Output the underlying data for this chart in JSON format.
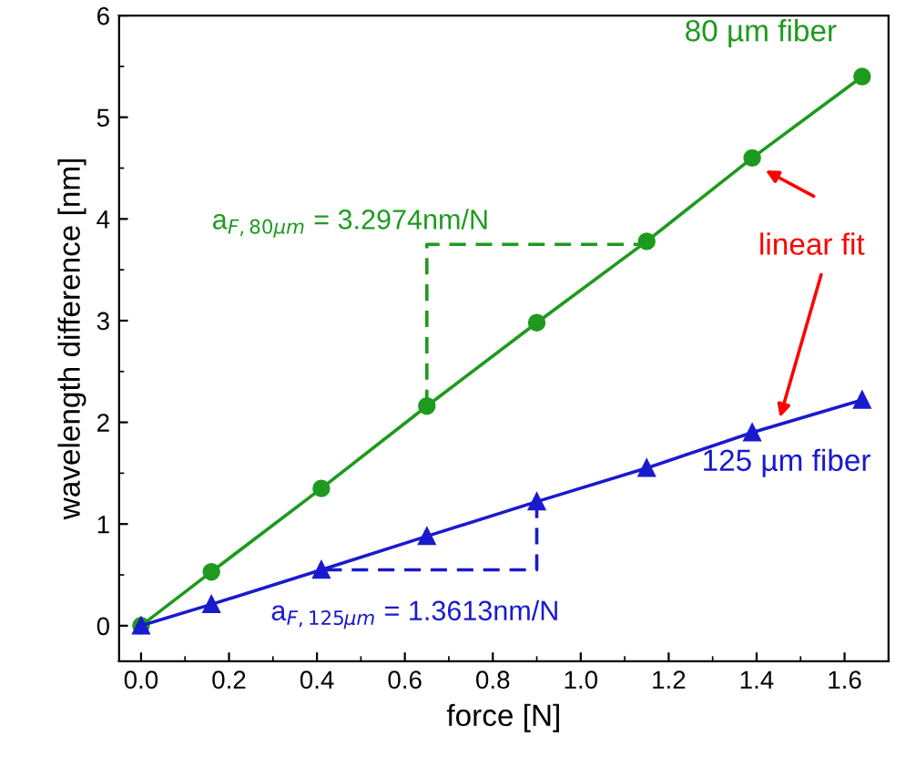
{
  "chart_data": {
    "type": "line",
    "xlabel": "force [N]",
    "ylabel": "wavelength difference [nm]",
    "xlim": [
      -0.05,
      1.7
    ],
    "ylim": [
      -0.35,
      6
    ],
    "xticks": [
      {
        "value": 0,
        "label": "0.0"
      },
      0.2,
      0.4,
      0.6,
      0.8,
      {
        "value": 1,
        "label": "1.0"
      },
      1.2,
      1.4,
      1.6
    ],
    "yticks": [
      0,
      1,
      2,
      3,
      4,
      5,
      6
    ],
    "grid": false,
    "legend": false,
    "series": [
      {
        "name": "80 µm fiber",
        "color": "#1e9a1e",
        "marker": "circle",
        "x": [
          0,
          0.16,
          0.41,
          0.65,
          0.9,
          1.15,
          1.39,
          1.64
        ],
        "values": [
          0,
          0.53,
          1.35,
          2.16,
          2.98,
          3.78,
          4.6,
          5.4
        ]
      },
      {
        "name": "125 µm fiber",
        "color": "#1a1acd",
        "marker": "triangle",
        "x": [
          0,
          0.16,
          0.41,
          0.65,
          0.9,
          1.15,
          1.39,
          1.64
        ],
        "values": [
          0,
          0.21,
          0.55,
          0.88,
          1.22,
          1.55,
          1.9,
          2.22
        ]
      },
      {
        "color": "#1e9a1e",
        "marker": "none",
        "line_style": "dashed",
        "x": [
          0.65,
          0.65,
          1.15
        ],
        "values": [
          2.16,
          3.75,
          3.75
        ]
      },
      {
        "color": "#1a1acd",
        "marker": "none",
        "line_style": "dashed",
        "x": [
          0.9,
          0.9,
          0.41
        ],
        "values": [
          1.22,
          0.55,
          0.55
        ]
      }
    ],
    "annotations": [
      {
        "text": "a$_{F,80µm}$ = 3.2974nm/N",
        "x": 0.65,
        "y": 3.75
      },
      {
        "text": "a$_{F,125µm}$ = 1.3613nm/N",
        "x": 0.41,
        "y": 0.55
      },
      "linear fit"
    ]
  }
}
